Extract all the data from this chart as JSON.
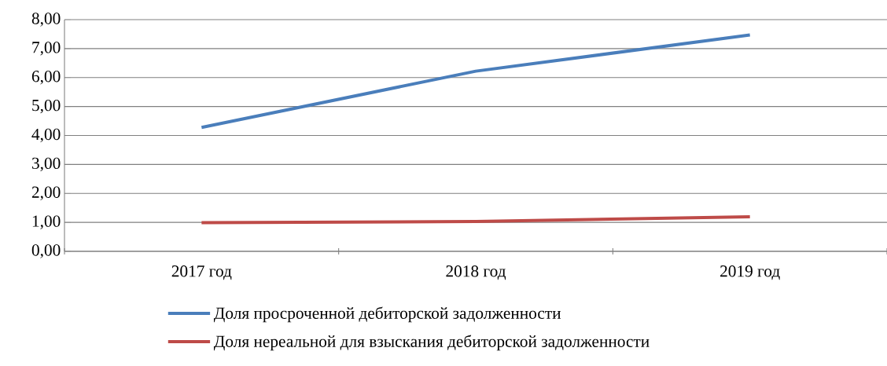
{
  "chart_data": {
    "type": "line",
    "categories": [
      "2017 год",
      "2018 год",
      "2019 год"
    ],
    "series": [
      {
        "name": "Доля просроченной дебиторской задолженности",
        "color": "#4a7ebb",
        "values": [
          4.28,
          6.22,
          7.47
        ]
      },
      {
        "name": "Доля нереальной для взыскания дебиторской задолженности",
        "color": "#be4b48",
        "values": [
          0.99,
          1.03,
          1.19
        ]
      }
    ],
    "ylim": [
      0,
      8
    ],
    "yticks": [
      {
        "value": 0,
        "label": "0,00"
      },
      {
        "value": 1,
        "label": "1,00"
      },
      {
        "value": 2,
        "label": "2,00"
      },
      {
        "value": 3,
        "label": "3,00"
      },
      {
        "value": 4,
        "label": "4,00"
      },
      {
        "value": 5,
        "label": "5,00"
      },
      {
        "value": 6,
        "label": "6,00"
      },
      {
        "value": 7,
        "label": "7,00"
      },
      {
        "value": 8,
        "label": "8,00"
      }
    ],
    "grid": "y",
    "legend": "bottom",
    "marker": "none",
    "line_style": "solid"
  }
}
